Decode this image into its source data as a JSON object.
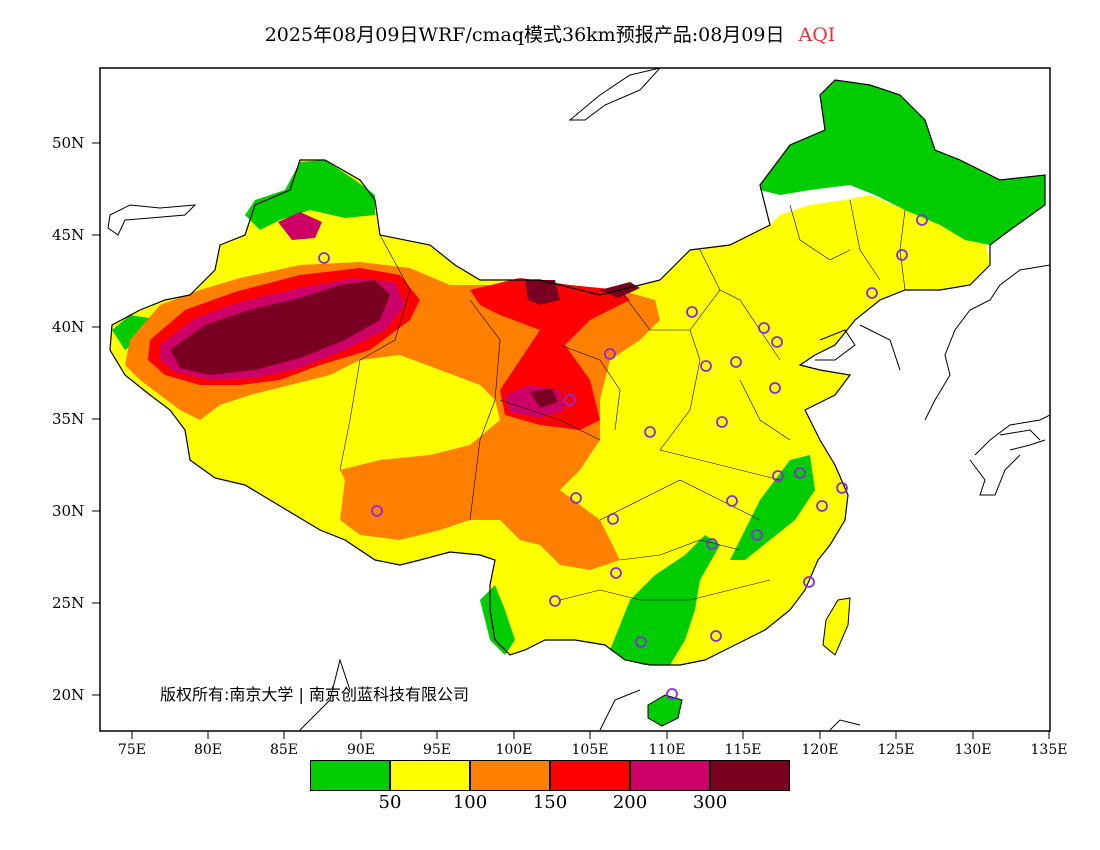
{
  "title": {
    "main": "2025年08月09日WRF/cmaq模式36km预报产品:08月09日",
    "variable": "AQI",
    "variable_color": "#e8322e"
  },
  "copyright": "版权所有:南京大学 | 南京创蓝科技有限公司",
  "lat_labels": [
    "50N",
    "45N",
    "40N",
    "35N",
    "30N",
    "25N",
    "20N"
  ],
  "lon_labels": [
    "75E",
    "80E",
    "85E",
    "90E",
    "95E",
    "100E",
    "105E",
    "110E",
    "115E",
    "120E",
    "125E",
    "130E",
    "135E"
  ],
  "legend": {
    "colors": [
      "#00cc00",
      "#ffff00",
      "#ff8000",
      "#ff0000",
      "#cc0066",
      "#7a0021"
    ],
    "ticks": [
      "50",
      "100",
      "150",
      "200",
      "300"
    ]
  },
  "colors": {
    "good": "#00cc00",
    "moderate": "#ffff00",
    "usg": "#ff8000",
    "unhealthy": "#ff0000",
    "very_unhealthy": "#cc0066",
    "hazardous": "#7a0021",
    "station": "#8a2be2"
  }
}
